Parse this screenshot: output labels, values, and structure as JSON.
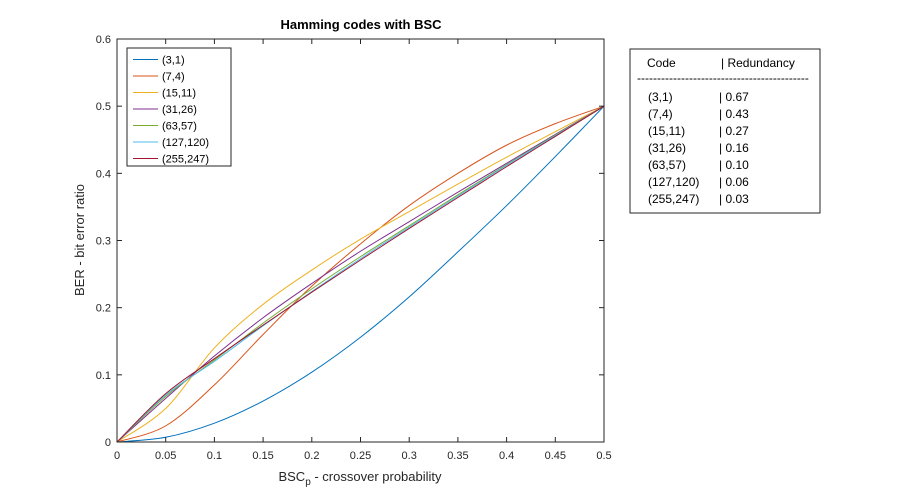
{
  "chart_data": {
    "type": "line",
    "title": "Hamming codes with BSC",
    "xlabel_main": "BSC",
    "xlabel_sub": "p",
    "xlabel_rest": " - crossover probability",
    "ylabel": "BER - bit error ratio",
    "xlim": [
      0,
      0.5
    ],
    "ylim": [
      0,
      0.6
    ],
    "xticks": [
      "0",
      "0.05",
      "0.1",
      "0.15",
      "0.2",
      "0.25",
      "0.3",
      "0.35",
      "0.4",
      "0.45",
      "0.5"
    ],
    "yticks": [
      "0",
      "0.1",
      "0.2",
      "0.3",
      "0.4",
      "0.5",
      "0.6"
    ],
    "grid": false,
    "legend_position": "top-left",
    "x": [
      0,
      0.05,
      0.1,
      0.15,
      0.2,
      0.25,
      0.3,
      0.35,
      0.4,
      0.45,
      0.5
    ],
    "series": [
      {
        "name": "(3,1)",
        "color": "#0072BD",
        "values": [
          0,
          0.007,
          0.028,
          0.061,
          0.104,
          0.156,
          0.216,
          0.283,
          0.352,
          0.425,
          0.5
        ]
      },
      {
        "name": "(7,4)",
        "color": "#D95319",
        "values": [
          0,
          0.024,
          0.085,
          0.16,
          0.232,
          0.295,
          0.352,
          0.4,
          0.442,
          0.474,
          0.5
        ]
      },
      {
        "name": "(15,11)",
        "color": "#EDB120",
        "values": [
          0,
          0.05,
          0.14,
          0.205,
          0.256,
          0.302,
          0.343,
          0.384,
          0.424,
          0.462,
          0.5
        ]
      },
      {
        "name": "(31,26)",
        "color": "#7E2F8E",
        "values": [
          0,
          0.065,
          0.128,
          0.185,
          0.236,
          0.284,
          0.328,
          0.372,
          0.415,
          0.458,
          0.5
        ]
      },
      {
        "name": "(63,57)",
        "color": "#77AC30",
        "values": [
          0,
          0.068,
          0.122,
          0.177,
          0.228,
          0.276,
          0.322,
          0.368,
          0.413,
          0.457,
          0.5
        ]
      },
      {
        "name": "(127,120)",
        "color": "#4DBEEE",
        "values": [
          0,
          0.07,
          0.12,
          0.173,
          0.224,
          0.273,
          0.32,
          0.366,
          0.412,
          0.456,
          0.5
        ]
      },
      {
        "name": "(255,247)",
        "color": "#A2142F",
        "values": [
          0,
          0.072,
          0.124,
          0.174,
          0.223,
          0.271,
          0.318,
          0.364,
          0.41,
          0.455,
          0.5
        ]
      }
    ]
  },
  "table": {
    "header_code": "Code",
    "header_redundancy": "| Redundancy",
    "separator": "-------------------------------------------",
    "rows": [
      {
        "code": "(3,1)",
        "value": "|  0.67"
      },
      {
        "code": "(7,4)",
        "value": "|  0.43"
      },
      {
        "code": "(15,11)",
        "value": "|  0.27"
      },
      {
        "code": "(31,26)",
        "value": "|  0.16"
      },
      {
        "code": "(63,57)",
        "value": "|  0.10"
      },
      {
        "code": "(127,120)",
        "value": "|  0.06"
      },
      {
        "code": "(255,247)",
        "value": "|  0.03"
      }
    ]
  }
}
